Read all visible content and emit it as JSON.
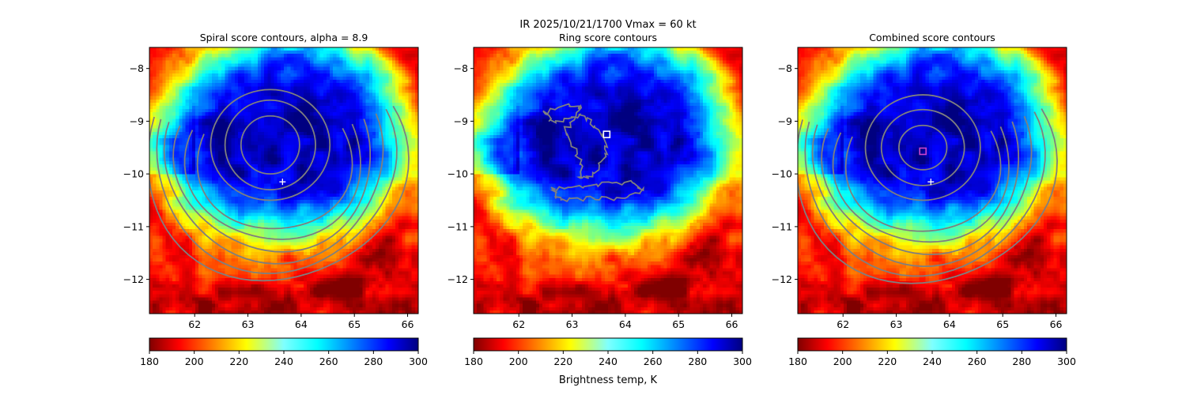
{
  "figure": {
    "suptitle_line1": "IR  2025/10/21/1700    Vmax = 60 kt",
    "colorbar_label": "Brightness temp, K"
  },
  "chart_data": [
    {
      "type": "heatmap",
      "title": "Spiral score contours, alpha =  8.9",
      "xlim": [
        61.15,
        66.2
      ],
      "ylim": [
        -12.65,
        -7.6
      ],
      "xticks": [
        62,
        63,
        64,
        65,
        66
      ],
      "yticks": [
        -8,
        -9,
        -10,
        -11,
        -12
      ],
      "colormap": "jet",
      "center_marker": {
        "symbol": "+",
        "x": 63.65,
        "y": -10.15,
        "color": "#ffffff"
      },
      "contours": [
        {
          "type": "ellipse",
          "cx": 63.42,
          "cy": -9.45,
          "rx": 0.55,
          "ry": 0.55
        },
        {
          "type": "ellipse",
          "cx": 63.42,
          "cy": -9.45,
          "rx": 0.85,
          "ry": 0.85
        },
        {
          "type": "ellipse",
          "cx": 63.42,
          "cy": -9.45,
          "rx": 1.12,
          "ry": 1.05
        },
        {
          "type": "arc",
          "cx": 63.5,
          "cy": -9.7,
          "r": 1.45
        },
        {
          "type": "arc",
          "cx": 63.5,
          "cy": -9.7,
          "r": 1.65
        },
        {
          "type": "arc",
          "cx": 63.5,
          "cy": -9.7,
          "r": 1.85
        },
        {
          "type": "arc",
          "cx": 63.5,
          "cy": -9.7,
          "r": 2.05
        },
        {
          "type": "arc",
          "cx": 63.5,
          "cy": -9.7,
          "r": 2.25
        },
        {
          "type": "arc",
          "cx": 63.5,
          "cy": -9.7,
          "r": 2.45
        }
      ]
    },
    {
      "type": "heatmap",
      "title": "Ring score contours",
      "xlim": [
        61.15,
        66.2
      ],
      "ylim": [
        -12.65,
        -7.6
      ],
      "xticks": [
        62,
        63,
        64,
        65,
        66
      ],
      "yticks": [
        -8,
        -9,
        -10,
        -11,
        -12
      ],
      "colormap": "jet",
      "center_marker": {
        "symbol": "square",
        "x": 63.65,
        "y": -9.25,
        "color": "#ffffff"
      },
      "contours": [
        {
          "type": "blob",
          "points": [
            [
              62.9,
              -9.15
            ],
            [
              63.05,
              -9.55
            ],
            [
              63.2,
              -9.85
            ],
            [
              63.15,
              -10.1
            ],
            [
              63.4,
              -10.0
            ],
            [
              63.6,
              -9.75
            ],
            [
              63.65,
              -9.45
            ],
            [
              63.45,
              -9.15
            ],
            [
              63.3,
              -8.95
            ],
            [
              63.1,
              -8.9
            ]
          ]
        },
        {
          "type": "blob",
          "points": [
            [
              62.65,
              -10.3
            ],
            [
              63.1,
              -10.25
            ],
            [
              63.6,
              -10.2
            ],
            [
              64.1,
              -10.15
            ],
            [
              64.35,
              -10.3
            ],
            [
              64.0,
              -10.5
            ],
            [
              63.5,
              -10.45
            ],
            [
              63.0,
              -10.5
            ],
            [
              62.7,
              -10.45
            ]
          ]
        },
        {
          "type": "blob",
          "points": [
            [
              62.5,
              -8.85
            ],
            [
              62.9,
              -8.7
            ],
            [
              63.2,
              -8.75
            ],
            [
              63.0,
              -8.95
            ],
            [
              62.6,
              -9.0
            ]
          ]
        }
      ]
    },
    {
      "type": "heatmap",
      "title": "Combined score contours",
      "xlim": [
        61.15,
        66.2
      ],
      "ylim": [
        -12.65,
        -7.6
      ],
      "xticks": [
        62,
        63,
        64,
        65,
        66
      ],
      "yticks": [
        -8,
        -9,
        -10,
        -11,
        -12
      ],
      "colormap": "jet",
      "center_marker": {
        "symbol": "+",
        "x": 63.65,
        "y": -10.15,
        "color": "#ffffff"
      },
      "best_marker": {
        "symbol": "square",
        "x": 63.5,
        "y": -9.57,
        "color": "#cc44cc"
      },
      "contours": [
        {
          "type": "ellipse",
          "cx": 63.5,
          "cy": -9.5,
          "rx": 0.45,
          "ry": 0.42
        },
        {
          "type": "ellipse",
          "cx": 63.5,
          "cy": -9.5,
          "rx": 0.78,
          "ry": 0.72
        },
        {
          "type": "ellipse",
          "cx": 63.5,
          "cy": -9.5,
          "rx": 1.08,
          "ry": 1.0
        },
        {
          "type": "arc",
          "cx": 63.5,
          "cy": -9.75,
          "r": 1.45
        },
        {
          "type": "arc",
          "cx": 63.5,
          "cy": -9.75,
          "r": 1.65
        },
        {
          "type": "arc",
          "cx": 63.5,
          "cy": -9.75,
          "r": 1.85
        },
        {
          "type": "arc",
          "cx": 63.5,
          "cy": -9.75,
          "r": 2.05
        },
        {
          "type": "arc",
          "cx": 63.5,
          "cy": -9.75,
          "r": 2.25
        },
        {
          "type": "arc",
          "cx": 63.5,
          "cy": -9.75,
          "r": 2.45
        }
      ]
    }
  ],
  "colorbar": {
    "min": 180,
    "max": 300,
    "ticks": [
      180,
      200,
      220,
      240,
      260,
      280,
      300
    ],
    "colormap": "jet"
  },
  "field": {
    "center_x": 63.5,
    "center_y": -9.5,
    "cold_core_K": 185,
    "warm_env_K": 285
  },
  "colors": {
    "contour": "#7f7f7f",
    "marker": "#ffffff"
  }
}
